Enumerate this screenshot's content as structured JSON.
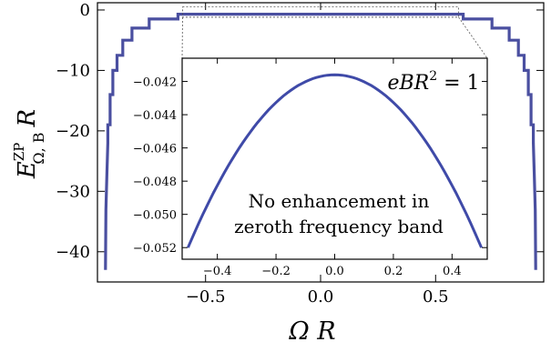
{
  "chart_data": [
    {
      "type": "line",
      "role": "main",
      "xlabel": "Ω R",
      "ylabel_main": "E",
      "ylabel_sup": "ZP",
      "ylabel_sub": "Ω, B",
      "ylabel_suffix": "R",
      "xlim": [
        -0.97,
        0.97
      ],
      "ylim": [
        -45,
        1.2
      ],
      "x_ticks": [
        -0.5,
        0.0,
        0.5
      ],
      "x_tick_labels": [
        "−0.5",
        "0.0",
        "0.5"
      ],
      "y_ticks": [
        0,
        -10,
        -20,
        -30,
        -40
      ],
      "y_tick_labels": [
        "0",
        "−10",
        "−20",
        "−30",
        "−40"
      ],
      "series": [
        {
          "color": "#4a4fa0",
          "x": [
            -0.935,
            -0.933,
            -0.929,
            -0.925,
            -0.925,
            -0.915,
            -0.915,
            -0.903,
            -0.903,
            -0.885,
            -0.885,
            -0.86,
            -0.86,
            -0.82,
            -0.82,
            -0.745,
            -0.745,
            -0.62,
            -0.62,
            0.62,
            0.62,
            0.745,
            0.745,
            0.82,
            0.82,
            0.86,
            0.86,
            0.885,
            0.885,
            0.903,
            0.903,
            0.915,
            0.915,
            0.925,
            0.925,
            0.929,
            0.933,
            0.935
          ],
          "y": [
            -43,
            -33,
            -27,
            -22,
            -19,
            -19,
            -14,
            -14,
            -10,
            -10,
            -7.5,
            -7.5,
            -5,
            -5,
            -3,
            -3,
            -1.5,
            -1.5,
            -0.7,
            -0.7,
            -1.5,
            -1.5,
            -3,
            -3,
            -5,
            -5,
            -7.5,
            -7.5,
            -10,
            -10,
            -14,
            -14,
            -19,
            -19,
            -22,
            -27,
            -33,
            -43
          ]
        }
      ],
      "zoom_region": {
        "x": [
          -0.6,
          0.6
        ],
        "y": [
          -1.2,
          0.5
        ]
      }
    },
    {
      "type": "line",
      "role": "inset",
      "xlim": [
        -0.52,
        0.52
      ],
      "ylim": [
        -0.0527,
        -0.0406
      ],
      "x_ticks": [
        -0.4,
        -0.2,
        0.0,
        0.2,
        0.4
      ],
      "x_tick_labels": [
        "−0.4",
        "−0.2",
        "0.0",
        "0.2",
        "0.4"
      ],
      "y_ticks": [
        -0.042,
        -0.044,
        -0.046,
        -0.048,
        -0.05,
        -0.052
      ],
      "y_tick_labels": [
        "−0.042",
        "−0.044",
        "−0.046",
        "−0.048",
        "−0.050",
        "−0.052"
      ],
      "series": [
        {
          "color": "#3f4aa8",
          "x": [
            -0.5,
            -0.4,
            -0.3,
            -0.2,
            -0.1,
            0.0,
            0.1,
            0.2,
            0.3,
            0.4,
            0.5
          ],
          "y": [
            -0.052,
            -0.0487,
            -0.0461,
            -0.0443,
            -0.0432,
            -0.0416,
            -0.0432,
            -0.0443,
            -0.0461,
            -0.0487,
            -0.052
          ]
        }
      ]
    }
  ],
  "annotations": {
    "param_prefix": "eBR",
    "param_exp": "2",
    "param_suffix": " = 1",
    "param_color": "#8b1c1c",
    "note_line1": "No enhancement in",
    "note_line2": "zeroth frequency band",
    "note_color": "#a020b0"
  }
}
